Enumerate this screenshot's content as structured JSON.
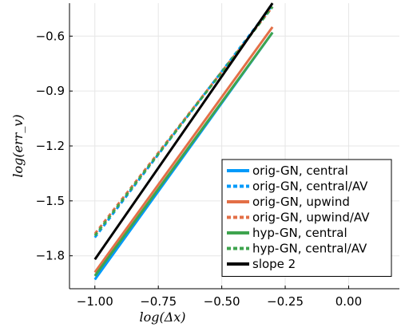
{
  "chart_data": {
    "type": "line",
    "title": "",
    "xlabel": "log(Δx)",
    "ylabel": "log(err_v)",
    "xlim": [
      -1.1,
      0.2
    ],
    "ylim": [
      -1.98,
      -0.42
    ],
    "xticks": [
      -1.0,
      -0.75,
      -0.5,
      -0.25,
      0.0
    ],
    "xtick_labels": [
      "−1.00",
      "−0.75",
      "−0.50",
      "−0.25",
      "0.00"
    ],
    "yticks": [
      -1.8,
      -1.5,
      -1.2,
      -0.9,
      -0.6
    ],
    "ytick_labels": [
      "−1.8",
      "−1.5",
      "−1.2",
      "−0.9",
      "−0.6"
    ],
    "grid": true,
    "legend_position": "bottom-right",
    "series": [
      {
        "name": "orig-GN, central",
        "color": "#009AFA",
        "style": "solid",
        "x": [
          -1.0,
          -0.3
        ],
        "y": [
          -1.93,
          -0.58
        ]
      },
      {
        "name": "orig-GN, central/AV",
        "color": "#009AFA",
        "style": "dashed",
        "x": [
          -1.0,
          -0.3
        ],
        "y": [
          -1.7,
          -0.43
        ]
      },
      {
        "name": "orig-GN, upwind",
        "color": "#E36F47",
        "style": "solid",
        "x": [
          -1.0,
          -0.3
        ],
        "y": [
          -1.89,
          -0.55
        ]
      },
      {
        "name": "orig-GN, upwind/AV",
        "color": "#E36F47",
        "style": "dashed",
        "x": [
          -1.0,
          -0.3
        ],
        "y": [
          -1.68,
          -0.44
        ]
      },
      {
        "name": "hyp-GN, central",
        "color": "#3EA44E",
        "style": "solid",
        "x": [
          -1.0,
          -0.3
        ],
        "y": [
          -1.91,
          -0.58
        ]
      },
      {
        "name": "hyp-GN, central/AV",
        "color": "#3EA44E",
        "style": "dashed",
        "x": [
          -1.0,
          -0.3
        ],
        "y": [
          -1.69,
          -0.44
        ]
      },
      {
        "name": "slope 2",
        "color": "#000000",
        "style": "solid",
        "x": [
          -1.0,
          -0.3
        ],
        "y": [
          -1.82,
          -0.42
        ]
      }
    ]
  }
}
